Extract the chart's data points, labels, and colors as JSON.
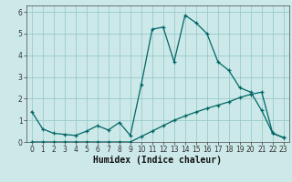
{
  "xlabel": "Humidex (Indice chaleur)",
  "background_color": "#cce8e8",
  "grid_color": "#99cccc",
  "line_color": "#006666",
  "xlim": [
    -0.5,
    23.5
  ],
  "ylim": [
    0,
    6.3
  ],
  "xticks": [
    0,
    1,
    2,
    3,
    4,
    5,
    6,
    7,
    8,
    9,
    10,
    11,
    12,
    13,
    14,
    15,
    16,
    17,
    18,
    19,
    20,
    21,
    22,
    23
  ],
  "yticks": [
    0,
    1,
    2,
    3,
    4,
    5,
    6
  ],
  "series1_x": [
    0,
    1,
    2,
    3,
    4,
    5,
    6,
    7,
    8,
    9,
    10,
    11,
    12,
    13,
    14,
    15,
    16,
    17,
    18,
    19,
    20,
    21,
    22,
    23
  ],
  "series1_y": [
    1.4,
    0.6,
    0.4,
    0.35,
    0.3,
    0.5,
    0.75,
    0.55,
    0.9,
    0.3,
    2.65,
    5.2,
    5.3,
    3.7,
    5.85,
    5.5,
    5.0,
    3.7,
    3.3,
    2.5,
    2.3,
    1.45,
    0.4,
    0.2
  ],
  "series2_x": [
    0,
    1,
    2,
    3,
    4,
    5,
    6,
    7,
    8,
    9,
    10,
    11,
    12,
    13,
    14,
    15,
    16,
    17,
    18,
    19,
    20,
    21,
    22,
    23
  ],
  "series2_y": [
    0,
    0,
    0,
    0,
    0,
    0,
    0,
    0,
    0,
    0,
    0.25,
    0.5,
    0.75,
    1.0,
    1.2,
    1.38,
    1.55,
    1.7,
    1.85,
    2.05,
    2.2,
    2.3,
    0.4,
    0.2
  ],
  "tick_fontsize": 5.5,
  "xlabel_fontsize": 7,
  "marker_size": 3.5,
  "line_width": 0.9
}
